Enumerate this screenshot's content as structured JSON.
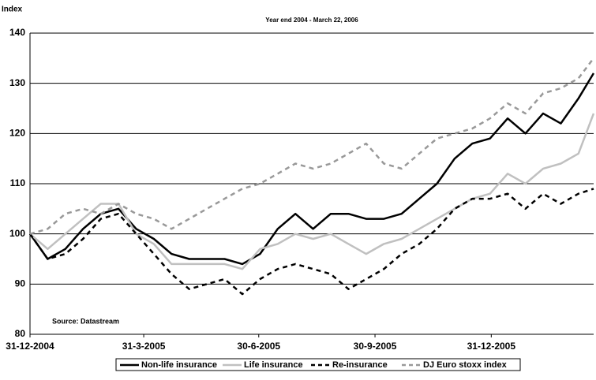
{
  "chart_data": {
    "type": "line",
    "title": "Year end 2004 - March 22, 2006",
    "y_label": "Index",
    "annotation": "Source: Datastream",
    "x": [
      "2004-12-31",
      "2005-01-14",
      "2005-01-28",
      "2005-02-11",
      "2005-02-25",
      "2005-03-11",
      "2005-03-25",
      "2005-04-08",
      "2005-04-22",
      "2005-05-06",
      "2005-05-20",
      "2005-06-03",
      "2005-06-17",
      "2005-07-01",
      "2005-07-15",
      "2005-07-29",
      "2005-08-12",
      "2005-08-26",
      "2005-09-09",
      "2005-09-23",
      "2005-10-07",
      "2005-10-21",
      "2005-11-04",
      "2005-11-18",
      "2005-12-02",
      "2005-12-16",
      "2005-12-30",
      "2006-01-13",
      "2006-01-27",
      "2006-02-10",
      "2006-02-24",
      "2006-03-10",
      "2006-03-22"
    ],
    "series": [
      {
        "name": "Non-life insurance",
        "color": "#000000",
        "dash": false,
        "values": [
          100,
          95,
          97,
          101,
          104,
          105,
          101,
          99,
          96,
          95,
          95,
          95,
          94,
          96,
          101,
          104,
          101,
          104,
          104,
          103,
          103,
          104,
          107,
          110,
          115,
          118,
          119,
          123,
          120,
          124,
          122,
          127,
          132
        ]
      },
      {
        "name": "Life insurance",
        "color": "#c0c0c0",
        "dash": false,
        "values": [
          100,
          97,
          100,
          103,
          106,
          106,
          100,
          98,
          94,
          94,
          94,
          94,
          93,
          97,
          98,
          100,
          99,
          100,
          98,
          96,
          98,
          99,
          101,
          103,
          105,
          107,
          108,
          112,
          110,
          113,
          114,
          116,
          124
        ]
      },
      {
        "name": "Re-insurance",
        "color": "#000000",
        "dash": true,
        "values": [
          100,
          95,
          96,
          99,
          103,
          104,
          100,
          96,
          92,
          89,
          90,
          91,
          88,
          91,
          93,
          94,
          93,
          92,
          89,
          91,
          93,
          96,
          98,
          101,
          105,
          107,
          107,
          108,
          105,
          108,
          106,
          108,
          109
        ]
      },
      {
        "name": "DJ Euro stoxx index",
        "color": "#999999",
        "dash": true,
        "values": [
          100,
          101,
          104,
          105,
          104,
          106,
          104,
          103,
          101,
          103,
          105,
          107,
          109,
          110,
          112,
          114,
          113,
          114,
          116,
          118,
          114,
          113,
          116,
          119,
          120,
          121,
          123,
          126,
          124,
          128,
          129,
          131,
          135
        ]
      }
    ],
    "xlim": [
      "2004-12-31",
      "2006-03-22"
    ],
    "xticks": [
      {
        "value": "2004-12-31",
        "label": "31-12-2004"
      },
      {
        "value": "2005-03-31",
        "label": "31-3-2005"
      },
      {
        "value": "2005-06-30",
        "label": "30-6-2005"
      },
      {
        "value": "2005-09-30",
        "label": "30-9-2005"
      },
      {
        "value": "2005-12-31",
        "label": "31-12-2005"
      }
    ],
    "ylim": [
      80,
      140
    ],
    "yticks": [
      80,
      90,
      100,
      110,
      120,
      130,
      140
    ],
    "grid": true,
    "legend": "bottom"
  }
}
